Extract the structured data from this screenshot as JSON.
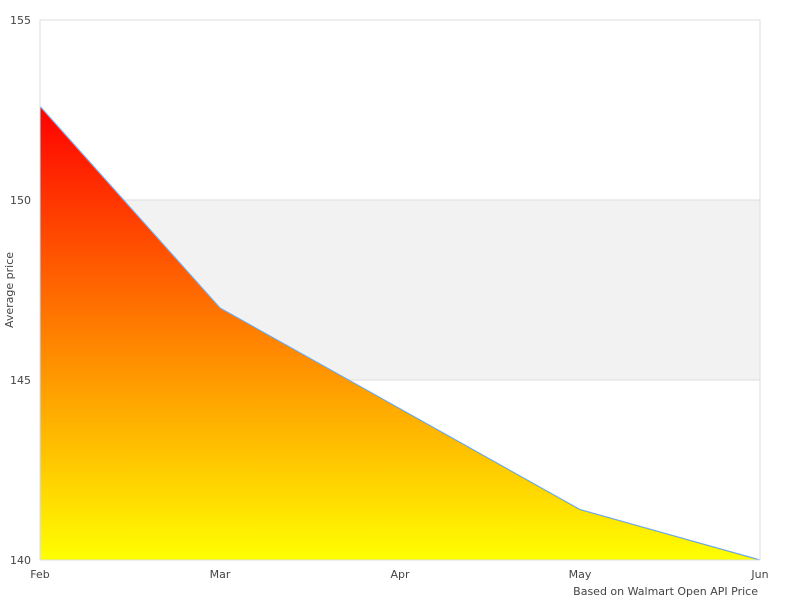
{
  "chart_data": {
    "type": "area",
    "title": "",
    "xlabel": "",
    "ylabel": "Average price",
    "footnote": "Based on Walmart Open API Price",
    "categories": [
      "Feb",
      "Mar",
      "Apr",
      "May",
      "Jun"
    ],
    "values": [
      152.6,
      147.0,
      144.2,
      141.4,
      140.0
    ],
    "ylim": [
      140,
      155
    ],
    "yticks": [
      "140",
      "145",
      "150",
      "155"
    ],
    "highlight_band": [
      145,
      150
    ],
    "grid": false,
    "colors": {
      "fill_top": "#ff0000",
      "fill_bottom": "#ffff00",
      "line": "#6fa8e8",
      "band": "#f2f2f2",
      "border": "#dddddd"
    }
  }
}
